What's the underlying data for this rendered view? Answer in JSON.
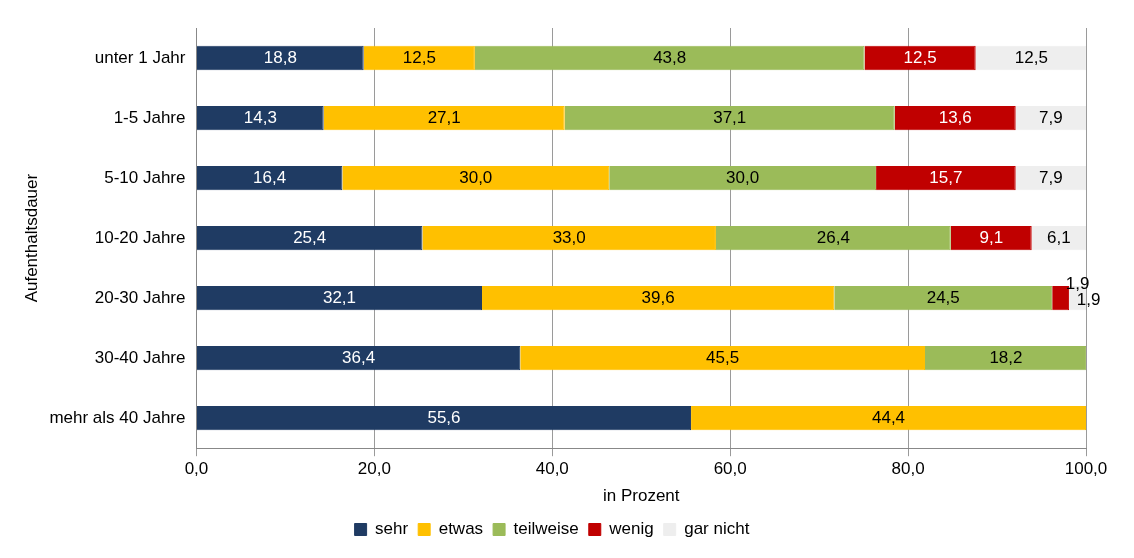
{
  "chart_data": {
    "type": "bar",
    "orientation": "horizontal",
    "stacked": true,
    "xlabel": "in Prozent",
    "ylabel": "Aufenthaltsdauer",
    "categories": [
      "unter 1 Jahr",
      "1-5 Jahre",
      "5-10 Jahre",
      "10-20 Jahre",
      "20-30 Jahre",
      "30-40 Jahre",
      "mehr als 40 Jahre"
    ],
    "xlim": [
      0,
      100
    ],
    "xticks": [
      {
        "value": 0,
        "label": "0,0"
      },
      {
        "value": 20,
        "label": "20,0"
      },
      {
        "value": 40,
        "label": "40,0"
      },
      {
        "value": 60,
        "label": "60,0"
      },
      {
        "value": 80,
        "label": "80,0"
      },
      {
        "value": 100,
        "label": "100,0"
      }
    ],
    "grid": "x",
    "legend": "bottom",
    "series": [
      {
        "name": "sehr",
        "color": "#1f3b63",
        "values": [
          18.8,
          14.3,
          16.4,
          25.4,
          32.1,
          36.4,
          55.6
        ],
        "value_labels": [
          "18,8",
          "14,3",
          "16,4",
          "25,4",
          "32,1",
          "36,4",
          "55,6"
        ]
      },
      {
        "name": "etwas",
        "color": "#ffc000",
        "values": [
          12.5,
          27.1,
          30.0,
          33.0,
          39.6,
          45.5,
          44.4
        ],
        "value_labels": [
          "12,5",
          "27,1",
          "30,0",
          "33,0",
          "39,6",
          "45,5",
          "44,4"
        ]
      },
      {
        "name": "teilweise",
        "color": "#9bbb59",
        "values": [
          43.8,
          37.1,
          30.0,
          26.4,
          24.5,
          18.2,
          null
        ],
        "value_labels": [
          "43,8",
          "37,1",
          "30,0",
          "26,4",
          "24,5",
          "18,2",
          null
        ]
      },
      {
        "name": "wenig",
        "color": "#c00000",
        "values": [
          12.5,
          13.6,
          15.7,
          9.1,
          1.9,
          null,
          null
        ],
        "value_labels": [
          "12,5",
          "13,6",
          "15,7",
          "9,1",
          "1,9",
          null,
          null
        ]
      },
      {
        "name": "gar nicht",
        "color": "#eeeeee",
        "values": [
          12.5,
          7.9,
          7.9,
          6.1,
          1.9,
          null,
          null
        ],
        "value_labels": [
          "12,5",
          "7,9",
          "7,9",
          "6,1",
          "1,9",
          null,
          null
        ]
      }
    ]
  }
}
